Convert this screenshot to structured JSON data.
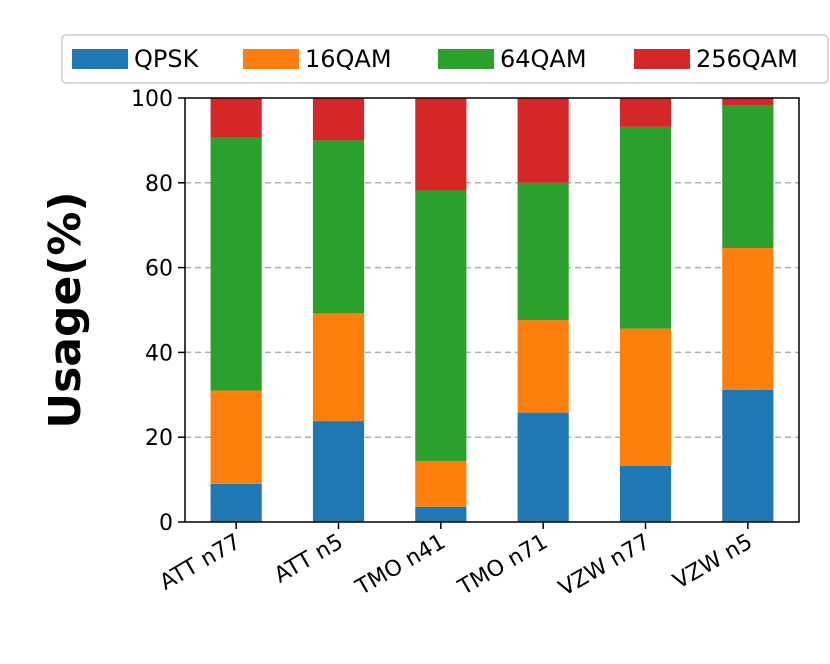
{
  "chart_data": {
    "type": "bar",
    "stacked": true,
    "title": "",
    "xlabel": "",
    "ylabel": "Usage(%)",
    "ylim": [
      0,
      100
    ],
    "yticks": [
      0,
      20,
      40,
      60,
      80,
      100
    ],
    "grid": "horizontal dashed",
    "legend_position": "top",
    "categories": [
      "ATT n77",
      "ATT n5",
      "TMO n41",
      "TMO n71",
      "VZW n77",
      "VZW n5"
    ],
    "series": [
      {
        "name": "QPSK",
        "color": "#1f77b4",
        "values": [
          9,
          23.8,
          3.6,
          25.8,
          13.2,
          31.2
        ]
      },
      {
        "name": "16QAM",
        "color": "#ff7f0e",
        "values": [
          22,
          25.4,
          10.8,
          21.8,
          32.4,
          33.4
        ]
      },
      {
        "name": "64QAM",
        "color": "#2ca02c",
        "values": [
          59.6,
          40.8,
          63.8,
          32.4,
          47.6,
          33.6
        ]
      },
      {
        "name": "256QAM",
        "color": "#d62728",
        "values": [
          9.4,
          10,
          21.8,
          20,
          6.8,
          1.8
        ]
      }
    ]
  }
}
